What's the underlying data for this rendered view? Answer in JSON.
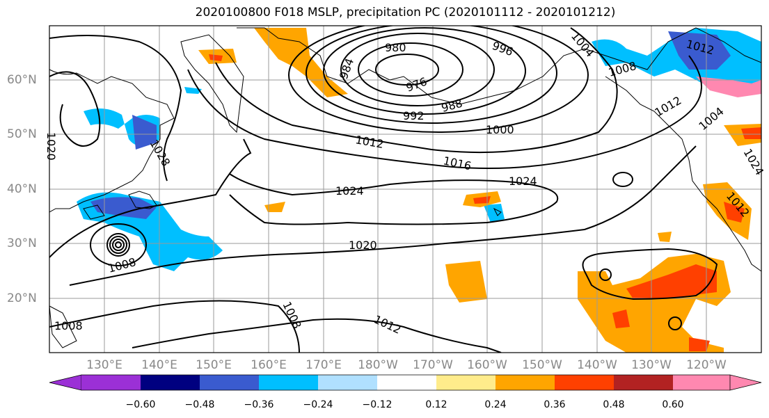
{
  "title": "2020100800 F018 MSLP, precipitation PC (2020101112 - 2020101212)",
  "lat_labels": [
    "60°N",
    "50°N",
    "40°N",
    "30°N",
    "20°N"
  ],
  "lon_labels": [
    "130°E",
    "140°E",
    "150°E",
    "160°E",
    "170°E",
    "180°W",
    "170°W",
    "160°W",
    "150°W",
    "140°W",
    "130°W",
    "120°W"
  ],
  "isobar_labels": [
    "980",
    "996",
    "1004",
    "1012",
    "984",
    "976",
    "1008",
    "1024",
    "992",
    "988",
    "1000",
    "1012",
    "1004",
    "1020",
    "1012",
    "1016",
    "1024",
    "1024",
    "1020",
    "1008",
    "1008",
    "1012",
    "1008",
    "1012",
    "1028"
  ],
  "colorbar": {
    "ticks": [
      "−0.60",
      "−0.48",
      "−0.36",
      "−0.24",
      "−0.12",
      "0.12",
      "0.24",
      "0.36",
      "0.48",
      "0.60"
    ],
    "colors": [
      "#9b30d6",
      "#000080",
      "#3a5bcf",
      "#00bfff",
      "#b0e0ff",
      "#ffffff",
      "#ffec8b",
      "#ffa500",
      "#ff4000",
      "#b22222",
      "#ff88b0"
    ]
  },
  "colors": {
    "grid": "#9a9a9a",
    "axis_label": "#888888",
    "contour": "#000000"
  }
}
